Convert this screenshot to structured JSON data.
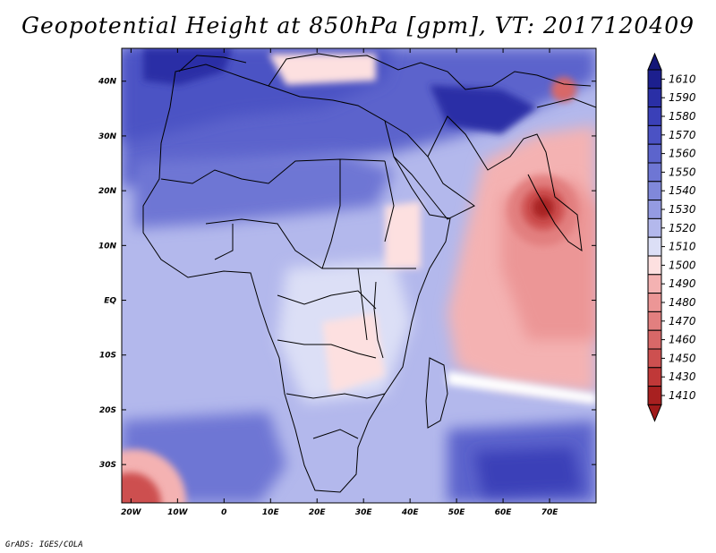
{
  "title": "Geopotential Height at 850hPa [gpm], VT: 2017120409",
  "footer": "GrADS: IGES/COLA",
  "map": {
    "lon_range": [
      -22,
      80
    ],
    "lat_range": [
      -37,
      46
    ],
    "x_ticks": [
      "20W",
      "10W",
      "0",
      "10E",
      "20E",
      "30E",
      "40E",
      "50E",
      "60E",
      "70E"
    ],
    "x_tick_values": [
      -20,
      -10,
      0,
      10,
      20,
      30,
      40,
      50,
      60,
      70
    ],
    "y_ticks": [
      "40N",
      "30N",
      "20N",
      "10N",
      "EQ",
      "10S",
      "20S",
      "30S"
    ],
    "y_tick_values": [
      40,
      30,
      20,
      10,
      0,
      -10,
      -20,
      -30
    ]
  },
  "colorbar": {
    "levels": [
      "1610",
      "1590",
      "1580",
      "1570",
      "1560",
      "1550",
      "1540",
      "1530",
      "1520",
      "1510",
      "1500",
      "1490",
      "1480",
      "1470",
      "1460",
      "1450",
      "1430",
      "1410"
    ],
    "colors": [
      "#1c1f8e",
      "#2a2fa6",
      "#3a40b8",
      "#4b52c4",
      "#5c64cc",
      "#6e76d4",
      "#8088da",
      "#949be2",
      "#b3b8ec",
      "#dcdff6",
      "#fde0e0",
      "#f4b2b2",
      "#ec9696",
      "#e27f7f",
      "#d86868",
      "#cd5050",
      "#c03838",
      "#a82020"
    ],
    "top_color": "#141678",
    "bottom_color": "#a01a1a"
  }
}
